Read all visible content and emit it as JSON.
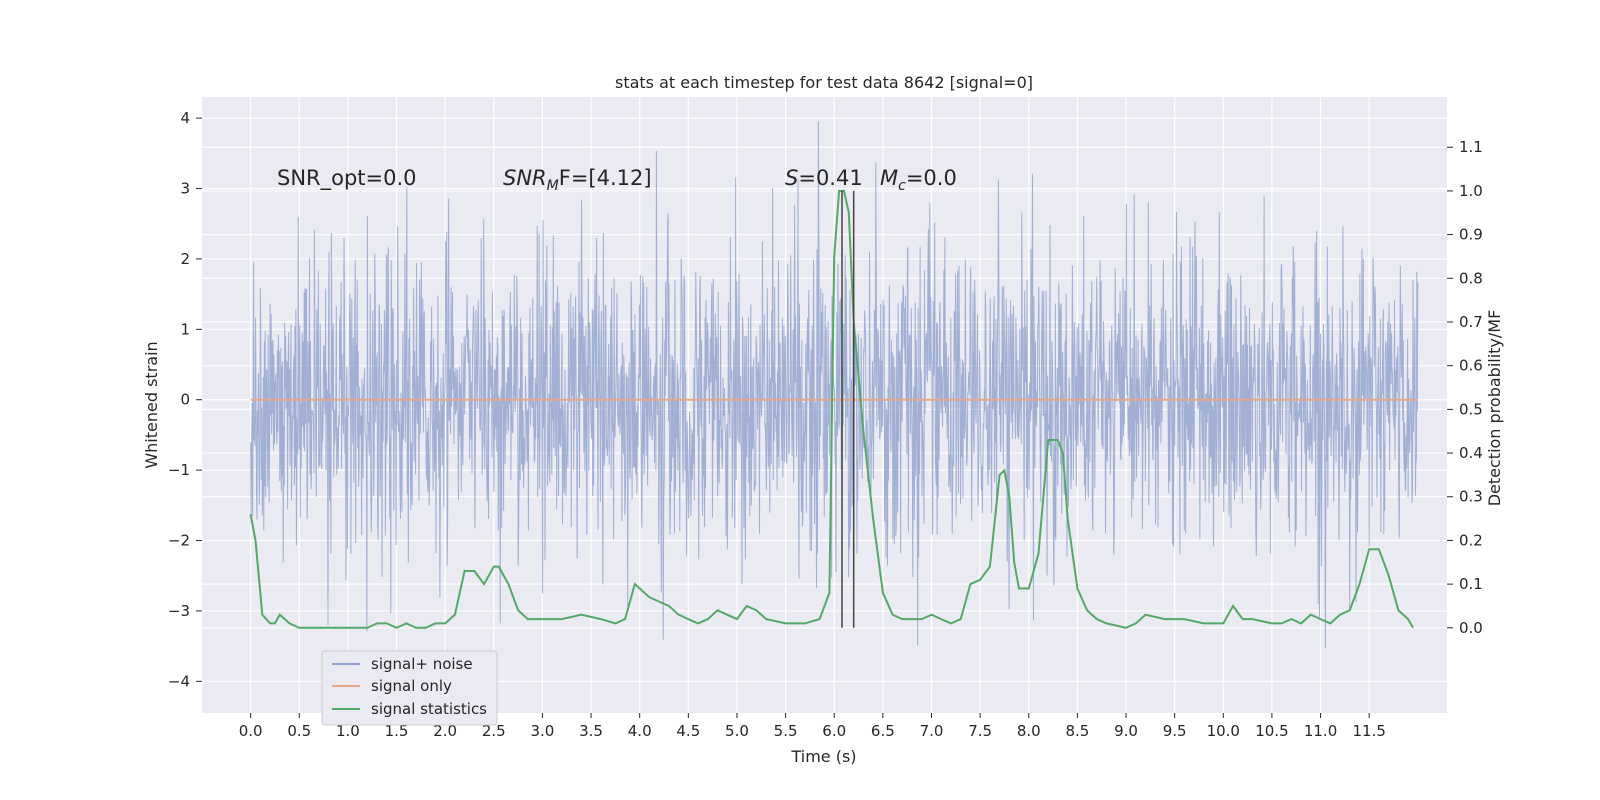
{
  "chart_data": {
    "type": "line",
    "title": "stats at each timestep for test data 8642 [signal=0]",
    "xlabel": "Time (s)",
    "ylabel": "Whitened strain",
    "y2label": "Detection probability/MF",
    "xlim": [
      -0.5,
      12.3
    ],
    "ylim": [
      -4.45,
      4.3
    ],
    "y2lim": [
      -0.195,
      1.215
    ],
    "xticks": [
      0.0,
      0.5,
      1.0,
      1.5,
      2.0,
      2.5,
      3.0,
      3.5,
      4.0,
      4.5,
      5.0,
      5.5,
      6.0,
      6.5,
      7.0,
      7.5,
      8.0,
      8.5,
      9.0,
      9.5,
      10.0,
      10.5,
      11.0,
      11.5
    ],
    "xtick_labels": [
      "0.0",
      "0.5",
      "1.0",
      "1.5",
      "2.0",
      "2.5",
      "3.0",
      "3.5",
      "4.0",
      "4.5",
      "5.0",
      "5.5",
      "6.0",
      "6.5",
      "7.0",
      "7.5",
      "8.0",
      "8.5",
      "9.0",
      "9.5",
      "10.0",
      "10.5",
      "11.0",
      "11.5"
    ],
    "yticks": [
      -4,
      -3,
      -2,
      -1,
      0,
      1,
      2,
      3,
      4
    ],
    "ytick_labels": [
      "−4",
      "−3",
      "−2",
      "−1",
      "0",
      "1",
      "2",
      "3",
      "4"
    ],
    "y2ticks": [
      0.0,
      0.1,
      0.2,
      0.3,
      0.4,
      0.5,
      0.6,
      0.7,
      0.8,
      0.9,
      1.0,
      1.1
    ],
    "y2tick_labels": [
      "0.0",
      "0.1",
      "0.2",
      "0.3",
      "0.4",
      "0.5",
      "0.6",
      "0.7",
      "0.8",
      "0.9",
      "1.0",
      "1.1"
    ],
    "grid": true,
    "legend_position": "lower-left",
    "noise": {
      "t_start": 0.0,
      "t_end": 12.0,
      "typical_amplitude": 1.1,
      "peak_max": 3.95,
      "peak_min": -4.1,
      "color": "#8da0cb"
    },
    "series": [
      {
        "name": "signal+ noise",
        "color": "#8da0cb",
        "axis": "left",
        "description_values": "dense noise"
      },
      {
        "name": "signal only",
        "color": "#e5a78a",
        "axis": "left",
        "x": [
          0.0,
          12.0
        ],
        "y": [
          0.0,
          0.0
        ]
      },
      {
        "name": "signal statistics",
        "color": "#55a868",
        "axis": "right",
        "x": [
          0.0,
          0.05,
          0.12,
          0.2,
          0.25,
          0.3,
          0.35,
          0.4,
          0.5,
          0.6,
          0.7,
          0.8,
          0.9,
          1.0,
          1.1,
          1.2,
          1.3,
          1.4,
          1.5,
          1.6,
          1.7,
          1.8,
          1.9,
          2.0,
          2.1,
          2.2,
          2.3,
          2.4,
          2.5,
          2.55,
          2.65,
          2.75,
          2.85,
          3.0,
          3.2,
          3.4,
          3.6,
          3.75,
          3.85,
          3.95,
          4.0,
          4.1,
          4.2,
          4.3,
          4.4,
          4.5,
          4.6,
          4.7,
          4.8,
          4.9,
          5.0,
          5.1,
          5.2,
          5.3,
          5.5,
          5.7,
          5.85,
          5.95,
          6.0,
          6.05,
          6.1,
          6.15,
          6.2,
          6.3,
          6.4,
          6.5,
          6.6,
          6.7,
          6.8,
          6.9,
          7.0,
          7.1,
          7.2,
          7.3,
          7.4,
          7.5,
          7.6,
          7.7,
          7.75,
          7.8,
          7.85,
          7.9,
          8.0,
          8.1,
          8.2,
          8.3,
          8.35,
          8.4,
          8.5,
          8.6,
          8.7,
          8.8,
          9.0,
          9.1,
          9.2,
          9.4,
          9.6,
          9.8,
          10.0,
          10.1,
          10.2,
          10.3,
          10.5,
          10.6,
          10.7,
          10.8,
          10.9,
          11.0,
          11.1,
          11.2,
          11.3,
          11.4,
          11.5,
          11.6,
          11.7,
          11.8,
          11.9,
          11.95
        ],
        "y": [
          0.26,
          0.2,
          0.03,
          0.01,
          0.01,
          0.03,
          0.02,
          0.01,
          0.0,
          0.0,
          0.0,
          0.0,
          0.0,
          0.0,
          0.0,
          0.0,
          0.01,
          0.01,
          0.0,
          0.01,
          0.0,
          0.0,
          0.01,
          0.01,
          0.03,
          0.13,
          0.13,
          0.1,
          0.14,
          0.14,
          0.1,
          0.04,
          0.02,
          0.02,
          0.02,
          0.03,
          0.02,
          0.01,
          0.02,
          0.1,
          0.09,
          0.07,
          0.06,
          0.05,
          0.03,
          0.02,
          0.01,
          0.02,
          0.04,
          0.03,
          0.02,
          0.05,
          0.04,
          0.02,
          0.01,
          0.01,
          0.02,
          0.08,
          0.85,
          1.0,
          1.0,
          0.95,
          0.7,
          0.45,
          0.25,
          0.08,
          0.03,
          0.02,
          0.02,
          0.02,
          0.03,
          0.02,
          0.01,
          0.02,
          0.1,
          0.11,
          0.14,
          0.35,
          0.36,
          0.3,
          0.15,
          0.09,
          0.09,
          0.17,
          0.43,
          0.43,
          0.4,
          0.25,
          0.09,
          0.04,
          0.02,
          0.01,
          0.0,
          0.01,
          0.03,
          0.02,
          0.02,
          0.01,
          0.01,
          0.05,
          0.02,
          0.02,
          0.01,
          0.01,
          0.02,
          0.01,
          0.03,
          0.02,
          0.01,
          0.03,
          0.04,
          0.1,
          0.18,
          0.18,
          0.12,
          0.04,
          0.02,
          0.0
        ]
      }
    ],
    "vlines": [
      {
        "x": 6.08,
        "color": "#444444"
      },
      {
        "x": 6.2,
        "color": "#444444"
      }
    ],
    "annotations": [
      {
        "key": "snr_opt",
        "text": "SNR_opt=0.0",
        "x": 0.2,
        "y": 3.1
      },
      {
        "key": "snr_mf",
        "text_main": "SNR",
        "text_sub": "M",
        "text_after": "F=[4.12]",
        "x": 2.6,
        "y": 3.1
      },
      {
        "key": "s",
        "text_main": "S",
        "text_after": "=0.41",
        "x": 5.6,
        "y": 3.1
      },
      {
        "key": "mc",
        "text_main": "M",
        "text_sub": "c",
        "text_after": "=0.0",
        "x": 6.6,
        "y": 3.1
      }
    ]
  }
}
